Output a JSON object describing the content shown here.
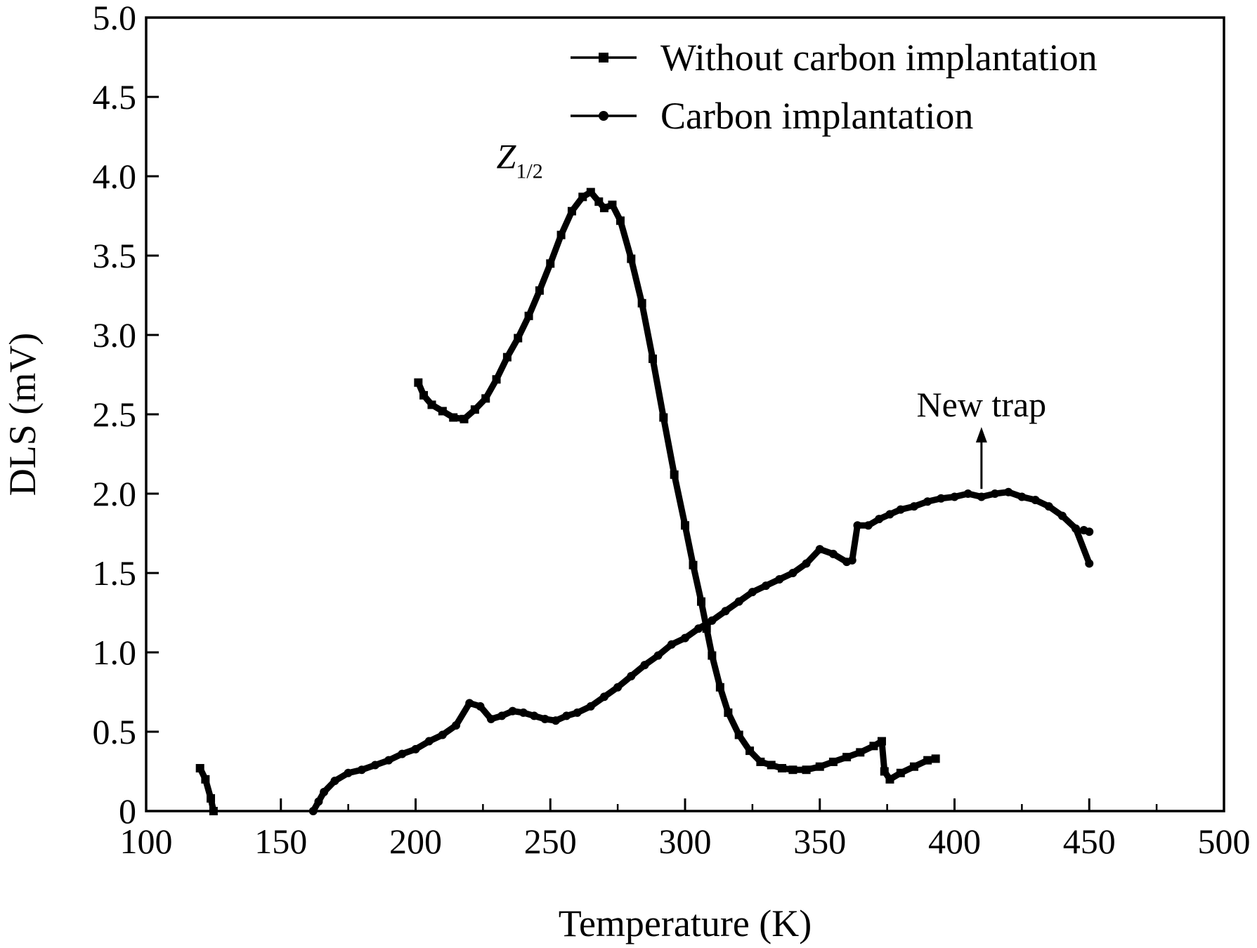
{
  "chart_data": {
    "type": "line",
    "title": "",
    "xlabel": "Temperature (K)",
    "ylabel": "DLS (mV)",
    "xlim": [
      100,
      500
    ],
    "ylim": [
      0,
      5.0
    ],
    "x_ticks": [
      100,
      150,
      200,
      250,
      300,
      350,
      400,
      450,
      500
    ],
    "x_tick_labels": [
      "100",
      "150",
      "200",
      "250",
      "300",
      "350",
      "400",
      "450",
      "500"
    ],
    "y_ticks": [
      0,
      0.5,
      1.0,
      1.5,
      2.0,
      2.5,
      3.0,
      3.5,
      4.0,
      4.5,
      5.0
    ],
    "y_tick_labels": [
      "0",
      "0.5",
      "1.0",
      "1.5",
      "2.0",
      "2.5",
      "3.0",
      "3.5",
      "4.0",
      "4.5",
      "5.0"
    ],
    "grid": false,
    "legend_position": "top-right",
    "series": [
      {
        "name": "Without carbon implantation",
        "marker": "square",
        "color": "#000000",
        "segments": [
          [
            [
              120,
              0.27
            ],
            [
              122,
              0.2
            ],
            [
              124,
              0.08
            ],
            [
              125,
              0.0
            ]
          ],
          [
            [
              201,
              2.7
            ],
            [
              203,
              2.62
            ],
            [
              206,
              2.56
            ],
            [
              210,
              2.52
            ],
            [
              214,
              2.48
            ],
            [
              218,
              2.47
            ],
            [
              222,
              2.53
            ],
            [
              226,
              2.6
            ],
            [
              230,
              2.72
            ],
            [
              234,
              2.86
            ],
            [
              238,
              2.98
            ],
            [
              242,
              3.12
            ],
            [
              246,
              3.28
            ],
            [
              250,
              3.45
            ],
            [
              254,
              3.63
            ],
            [
              258,
              3.78
            ],
            [
              262,
              3.87
            ],
            [
              265,
              3.9
            ],
            [
              268,
              3.84
            ],
            [
              270,
              3.8
            ],
            [
              273,
              3.82
            ],
            [
              276,
              3.72
            ],
            [
              280,
              3.48
            ],
            [
              284,
              3.2
            ],
            [
              288,
              2.85
            ],
            [
              292,
              2.48
            ],
            [
              296,
              2.12
            ],
            [
              300,
              1.8
            ],
            [
              303,
              1.55
            ],
            [
              306,
              1.32
            ],
            [
              308,
              1.15
            ],
            [
              310,
              0.98
            ],
            [
              313,
              0.78
            ],
            [
              316,
              0.62
            ],
            [
              320,
              0.48
            ],
            [
              324,
              0.38
            ],
            [
              328,
              0.31
            ],
            [
              332,
              0.29
            ],
            [
              336,
              0.27
            ],
            [
              340,
              0.26
            ],
            [
              345,
              0.26
            ],
            [
              350,
              0.28
            ],
            [
              355,
              0.31
            ],
            [
              360,
              0.34
            ],
            [
              365,
              0.37
            ],
            [
              370,
              0.41
            ],
            [
              373,
              0.44
            ],
            [
              374,
              0.25
            ],
            [
              376,
              0.2
            ],
            [
              380,
              0.24
            ],
            [
              385,
              0.28
            ],
            [
              390,
              0.32
            ],
            [
              393,
              0.33
            ]
          ]
        ]
      },
      {
        "name": "Carbon implantation",
        "marker": "circle",
        "color": "#000000",
        "segments": [
          [
            [
              162,
              0.0
            ],
            [
              164,
              0.06
            ],
            [
              166,
              0.12
            ],
            [
              170,
              0.19
            ],
            [
              175,
              0.24
            ],
            [
              180,
              0.26
            ],
            [
              185,
              0.29
            ],
            [
              190,
              0.32
            ],
            [
              195,
              0.36
            ],
            [
              200,
              0.39
            ],
            [
              205,
              0.44
            ],
            [
              210,
              0.48
            ],
            [
              215,
              0.54
            ],
            [
              220,
              0.68
            ],
            [
              224,
              0.66
            ],
            [
              228,
              0.58
            ],
            [
              232,
              0.6
            ],
            [
              236,
              0.63
            ],
            [
              240,
              0.62
            ],
            [
              244,
              0.6
            ],
            [
              248,
              0.58
            ],
            [
              252,
              0.57
            ],
            [
              256,
              0.6
            ],
            [
              260,
              0.62
            ],
            [
              265,
              0.66
            ],
            [
              270,
              0.72
            ],
            [
              275,
              0.78
            ],
            [
              280,
              0.85
            ],
            [
              285,
              0.92
            ],
            [
              290,
              0.98
            ],
            [
              295,
              1.05
            ],
            [
              300,
              1.09
            ],
            [
              305,
              1.15
            ],
            [
              310,
              1.2
            ],
            [
              315,
              1.26
            ],
            [
              320,
              1.32
            ],
            [
              325,
              1.38
            ],
            [
              330,
              1.42
            ],
            [
              335,
              1.46
            ],
            [
              340,
              1.5
            ],
            [
              345,
              1.56
            ],
            [
              350,
              1.65
            ],
            [
              355,
              1.62
            ],
            [
              360,
              1.57
            ],
            [
              362,
              1.58
            ],
            [
              364,
              1.8
            ],
            [
              368,
              1.8
            ],
            [
              372,
              1.84
            ],
            [
              376,
              1.87
            ],
            [
              380,
              1.9
            ],
            [
              385,
              1.92
            ],
            [
              390,
              1.95
            ],
            [
              395,
              1.97
            ],
            [
              400,
              1.98
            ],
            [
              405,
              2.0
            ],
            [
              410,
              1.98
            ],
            [
              415,
              2.0
            ],
            [
              420,
              2.01
            ],
            [
              425,
              1.98
            ],
            [
              430,
              1.96
            ],
            [
              435,
              1.92
            ],
            [
              440,
              1.86
            ],
            [
              445,
              1.78
            ],
            [
              450,
              1.56
            ]
          ],
          [
            [
              448,
              1.77
            ],
            [
              450,
              1.76
            ]
          ]
        ]
      }
    ],
    "annotations": [
      {
        "id": "z12",
        "text_main": "Z",
        "text_sub": "1/2",
        "x": 230,
        "y": 4.05
      },
      {
        "id": "new-trap",
        "text": "New trap",
        "x": 410,
        "y": 2.53,
        "arrow_from": [
          410,
          2.03
        ],
        "arrow_to": [
          410,
          2.42
        ]
      }
    ]
  }
}
